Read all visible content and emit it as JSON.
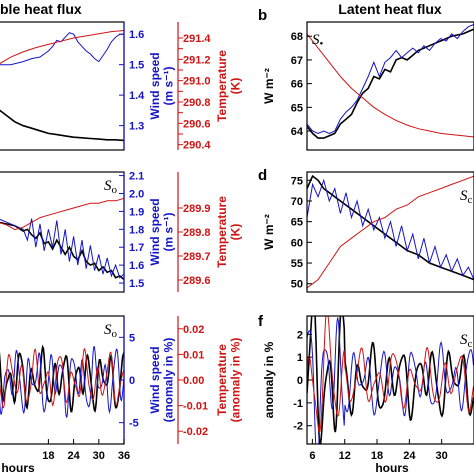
{
  "chart_data": [
    {
      "id": "a",
      "type": "line",
      "panel_letter": "",
      "title": "ble heat flux",
      "xlim": [
        6,
        36
      ],
      "x_ticks": [],
      "y_left": {
        "label": "",
        "ticks": []
      },
      "y_right_1": {
        "label": "Wind speed",
        "unit": "(m s⁻¹)",
        "color": "#1414c8",
        "lim": [
          1.22,
          1.64
        ],
        "ticks": [
          1.3,
          1.4,
          1.5,
          1.6
        ],
        "tick_labels": [
          "1.3",
          "1.4",
          "1.5",
          "1.6"
        ]
      },
      "y_right_2": {
        "label": "Temperature",
        "unit": "(K)",
        "color": "#d01414",
        "lim": [
          290.35,
          291.55
        ],
        "ticks": [
          290.4,
          290.5,
          290.6,
          290.7,
          290.8,
          290.9,
          291.0,
          291.1,
          291.2,
          291.3,
          291.4
        ],
        "tick_labels": [
          "290.4",
          "",
          "290.6",
          "",
          "290.8",
          "",
          "291.0",
          "",
          "291.2",
          "",
          "291.4"
        ]
      },
      "series": [
        {
          "color": "#000000",
          "axis": "norm",
          "x": [
            6,
            8,
            10,
            12,
            14,
            16,
            18,
            20,
            22,
            24,
            26,
            28,
            30,
            32,
            34,
            36
          ],
          "y": [
            0.32,
            0.27,
            0.22,
            0.19,
            0.17,
            0.15,
            0.13,
            0.12,
            0.11,
            0.1,
            0.095,
            0.09,
            0.085,
            0.08,
            0.08,
            0.075
          ]
        },
        {
          "color": "#1414c8",
          "axis": "y_right_1",
          "x": [
            6,
            9,
            12,
            14,
            16,
            17,
            18,
            19,
            20,
            21,
            22,
            23,
            24,
            25,
            26,
            27,
            28,
            29,
            30,
            31,
            32,
            33,
            34,
            35,
            36
          ],
          "y": [
            1.5,
            1.5,
            1.51,
            1.52,
            1.525,
            1.535,
            1.545,
            1.56,
            1.58,
            1.575,
            1.59,
            1.605,
            1.6,
            1.575,
            1.56,
            1.545,
            1.535,
            1.52,
            1.51,
            1.53,
            1.55,
            1.575,
            1.59,
            1.6,
            1.6
          ]
        },
        {
          "color": "#d01414",
          "axis": "y_right_2",
          "x": [
            6,
            9,
            12,
            15,
            18,
            21,
            24,
            27,
            30,
            33,
            36
          ],
          "y": [
            291.15,
            291.22,
            291.27,
            291.31,
            291.34,
            291.37,
            291.4,
            291.42,
            291.44,
            291.46,
            291.47
          ]
        }
      ]
    },
    {
      "id": "b",
      "type": "line",
      "panel_letter": "b",
      "title": "Latent heat flux",
      "annotation": {
        "symbol": "S",
        "subscript": "•"
      },
      "xlim": [
        6,
        36
      ],
      "x_ticks": [],
      "y_left": {
        "label": "W m⁻²",
        "lim": [
          63.2,
          68.6
        ],
        "ticks": [
          64,
          65,
          66,
          67,
          68
        ],
        "tick_labels": [
          "64",
          "65",
          "66",
          "67",
          "68"
        ]
      },
      "series": [
        {
          "color": "#000000",
          "axis": "y_left",
          "x": [
            6,
            7,
            8,
            9,
            10,
            11,
            12,
            13,
            14,
            15,
            16,
            17,
            18,
            19,
            20,
            21,
            22,
            23,
            24,
            25,
            26,
            27,
            28,
            29,
            30,
            31,
            32,
            33,
            34,
            35,
            36
          ],
          "y": [
            64.2,
            63.9,
            63.7,
            63.7,
            63.8,
            63.9,
            64.3,
            64.5,
            64.7,
            65.2,
            65.6,
            65.8,
            66.3,
            66.2,
            66.6,
            66.5,
            67.0,
            67.1,
            67.0,
            67.2,
            67.4,
            67.5,
            67.6,
            67.7,
            67.8,
            67.9,
            68.0,
            68.05,
            68.1,
            68.2,
            68.3
          ]
        },
        {
          "color": "#1414c8",
          "axis": "y_left",
          "x": [
            6,
            7,
            8,
            9,
            10,
            11,
            12,
            13,
            14,
            15,
            16,
            17,
            18,
            19,
            20,
            21,
            22,
            23,
            24,
            25,
            26,
            27,
            28,
            29,
            30,
            31,
            32,
            33,
            34,
            35,
            36
          ],
          "y": [
            64.3,
            64.0,
            63.9,
            64.0,
            63.9,
            64.0,
            64.5,
            64.8,
            65.0,
            65.3,
            65.8,
            66.3,
            66.9,
            66.3,
            66.9,
            67.1,
            67.4,
            67.1,
            67.3,
            67.5,
            67.3,
            67.6,
            67.4,
            67.7,
            67.9,
            67.8,
            68.1,
            67.9,
            68.2,
            68.4,
            68.5
          ]
        },
        {
          "color": "#d01414",
          "axis": "y_left",
          "x": [
            6,
            8,
            10,
            12,
            14,
            16,
            18,
            20,
            22,
            24,
            26,
            28,
            30,
            32,
            34,
            36
          ],
          "y": [
            68.1,
            67.5,
            66.9,
            66.3,
            65.8,
            65.4,
            65.0,
            64.7,
            64.45,
            64.25,
            64.1,
            64.0,
            63.9,
            63.85,
            63.8,
            63.75
          ]
        }
      ]
    },
    {
      "id": "c",
      "type": "line",
      "panel_letter": "",
      "annotation": {
        "symbol": "S",
        "subscript": "o"
      },
      "xlim": [
        6,
        36
      ],
      "x_ticks": [],
      "y_left": {
        "label": "",
        "ticks": []
      },
      "y_right_1": {
        "label": "Wind speed",
        "unit": "(m s⁻¹)",
        "color": "#1414c8",
        "lim": [
          1.45,
          2.12
        ],
        "ticks": [
          1.5,
          1.6,
          1.7,
          1.8,
          1.9,
          2.0,
          2.1
        ],
        "tick_labels": [
          "1.5",
          "1.6",
          "1.7",
          "1.8",
          "1.9",
          "2.0",
          "2.1"
        ]
      },
      "y_right_2": {
        "label": "Temperature",
        "unit": "(K)",
        "color": "#d01414",
        "lim": [
          289.55,
          290.05
        ],
        "ticks": [
          289.6,
          289.7,
          289.8,
          289.9
        ],
        "tick_labels": [
          "289.6",
          "289.7",
          "289.8",
          "289.9"
        ]
      },
      "series": [
        {
          "color": "#000000",
          "axis": "y_right_1",
          "x": [
            6,
            8,
            10,
            12,
            13,
            14,
            15,
            16,
            17,
            18,
            19,
            20,
            21,
            22,
            23,
            24,
            25,
            26,
            27,
            28,
            29,
            30,
            31,
            32,
            33,
            34,
            35,
            36
          ],
          "y": [
            1.84,
            1.83,
            1.82,
            1.79,
            1.8,
            1.77,
            1.75,
            1.78,
            1.72,
            1.73,
            1.69,
            1.74,
            1.7,
            1.66,
            1.7,
            1.65,
            1.63,
            1.68,
            1.62,
            1.6,
            1.61,
            1.57,
            1.59,
            1.56,
            1.57,
            1.53,
            1.54,
            1.52
          ]
        },
        {
          "color": "#1414c8",
          "axis": "y_right_1",
          "x": [
            6,
            8,
            10,
            12,
            13,
            14,
            15,
            16,
            17,
            18,
            19,
            20,
            21,
            22,
            23,
            24,
            25,
            26,
            27,
            28,
            29,
            30,
            31,
            32,
            33,
            34,
            35,
            36
          ],
          "y": [
            1.86,
            1.84,
            1.82,
            1.8,
            1.74,
            1.86,
            1.7,
            1.83,
            1.68,
            1.8,
            1.7,
            1.85,
            1.66,
            1.8,
            1.62,
            1.76,
            1.6,
            1.74,
            1.58,
            1.71,
            1.57,
            1.66,
            1.55,
            1.64,
            1.54,
            1.6,
            1.53,
            1.55
          ]
        },
        {
          "color": "#d01414",
          "axis": "y_right_2",
          "x": [
            6,
            8,
            10,
            12,
            14,
            16,
            18,
            20,
            22,
            24,
            26,
            28,
            30,
            32,
            34,
            36
          ],
          "y": [
            289.84,
            289.83,
            289.81,
            289.82,
            289.84,
            289.86,
            289.87,
            289.88,
            289.89,
            289.9,
            289.91,
            289.92,
            289.92,
            289.93,
            289.93,
            289.94
          ]
        }
      ]
    },
    {
      "id": "d",
      "type": "line",
      "panel_letter": "d",
      "annotation": {
        "symbol": "S",
        "subscript": "c"
      },
      "xlim": [
        6,
        36
      ],
      "x_ticks": [],
      "y_left": {
        "label": "W m⁻²",
        "lim": [
          48,
          77
        ],
        "ticks": [
          50,
          55,
          60,
          65,
          70,
          75
        ],
        "tick_labels": [
          "50",
          "55",
          "60",
          "65",
          "70",
          "75"
        ]
      },
      "series": [
        {
          "color": "#000000",
          "axis": "y_left",
          "x": [
            6,
            7,
            8,
            9,
            10,
            11,
            12,
            13,
            14,
            16,
            18,
            20,
            22,
            24,
            26,
            28,
            30,
            32,
            34,
            36
          ],
          "y": [
            73,
            76,
            75,
            73,
            72,
            71,
            70,
            69,
            68,
            66,
            64,
            62,
            60,
            58,
            57,
            55,
            54,
            53,
            52,
            51
          ]
        },
        {
          "color": "#1414c8",
          "axis": "y_left",
          "x": [
            6,
            7,
            8,
            9,
            10,
            11,
            12,
            13,
            14,
            15,
            16,
            17,
            18,
            19,
            20,
            21,
            22,
            23,
            24,
            25,
            26,
            27,
            28,
            29,
            30,
            31,
            32,
            33,
            34,
            35,
            36
          ],
          "y": [
            66,
            74,
            71,
            75,
            70,
            73,
            67,
            72,
            66,
            70,
            64,
            68,
            63,
            66,
            61,
            65,
            59,
            64,
            58,
            62,
            56,
            61,
            55,
            59,
            54,
            57,
            53,
            56,
            52,
            54,
            51
          ]
        },
        {
          "color": "#d01414",
          "axis": "y_left",
          "x": [
            6,
            8,
            10,
            12,
            14,
            16,
            18,
            20,
            22,
            24,
            26,
            28,
            30,
            32,
            34,
            36
          ],
          "y": [
            49,
            51,
            55,
            59,
            61,
            63,
            65,
            66,
            68,
            69,
            71,
            72,
            73,
            74,
            75,
            76
          ]
        }
      ]
    },
    {
      "id": "e",
      "type": "line",
      "panel_letter": "",
      "annotation": {
        "symbol": "S",
        "subscript": "o"
      },
      "xlim": [
        6,
        36
      ],
      "xlabel": "hours",
      "x_ticks": [
        18,
        24,
        30,
        36
      ],
      "x_tick_labels": [
        "18",
        "24",
        "30",
        "36"
      ],
      "y_left": {
        "label": "",
        "ticks": []
      },
      "y_right_1": {
        "label": "Wind speed",
        "unit": "(anomaly in %)",
        "color": "#1414c8",
        "lim": [
          -7.5,
          7.5
        ],
        "ticks": [
          -5,
          0,
          5
        ],
        "tick_labels": [
          "-5",
          "0",
          "5"
        ]
      },
      "y_right_2": {
        "label": "Temperature",
        "unit": "(anomaly in %)",
        "color": "#d01414",
        "lim": [
          -0.025,
          0.025
        ],
        "ticks": [
          -0.02,
          -0.01,
          0.0,
          0.01,
          0.02
        ],
        "tick_labels": [
          "-0.02",
          "-0.01",
          "0.00",
          "0.01",
          "0.02"
        ]
      },
      "series": [
        {
          "color": "#000000",
          "axis": "osc",
          "amp": 0.3,
          "period": 2.7,
          "phase": 0.3
        },
        {
          "color": "#1414c8",
          "axis": "osc",
          "amp": 0.33,
          "period": 2.6,
          "phase": 1.0
        },
        {
          "color": "#d01414",
          "axis": "osc",
          "amp": 0.28,
          "period": 3.0,
          "phase": 2.2
        }
      ]
    },
    {
      "id": "f",
      "type": "line",
      "panel_letter": "f",
      "annotation": {
        "symbol": "S",
        "subscript": "c"
      },
      "xlim": [
        5,
        36
      ],
      "xlabel": "hours",
      "x_ticks": [
        6,
        12,
        18,
        24,
        30
      ],
      "x_tick_labels": [
        "6",
        "12",
        "18",
        "24",
        "30"
      ],
      "y_left": {
        "label": "anomaly in %",
        "lim": [
          -2.8,
          2.8
        ],
        "ticks": [
          -2,
          -1,
          0,
          1,
          2
        ],
        "tick_labels": [
          "-2",
          "-1",
          "0",
          "1",
          "2"
        ]
      },
      "series": [
        {
          "color": "#000000",
          "axis": "osc",
          "amp": 0.36,
          "period": 2.8,
          "phase": 0.5
        },
        {
          "color": "#1414c8",
          "axis": "osc",
          "amp": 0.34,
          "period": 2.7,
          "phase": 1.3
        },
        {
          "color": "#d01414",
          "axis": "osc",
          "amp": 0.3,
          "period": 3.1,
          "phase": 2.6
        }
      ]
    }
  ]
}
